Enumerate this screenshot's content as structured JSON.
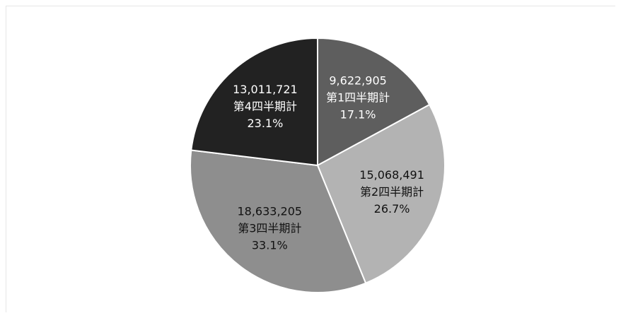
{
  "chart_data": {
    "type": "pie",
    "categories": [
      "第1四半期計",
      "第2四半期計",
      "第3四半期計",
      "第4四半期計"
    ],
    "values": [
      9622905,
      15068491,
      18633205,
      13011721
    ],
    "value_labels": [
      "9,622,905",
      "15,068,491",
      "18,633,205",
      "13,011,721"
    ],
    "percent_labels": [
      "17.1%",
      "26.7%",
      "33.1%",
      "23.1%"
    ],
    "colors": [
      "#5e5e5e",
      "#b3b3b3",
      "#8e8e8e",
      "#222222"
    ],
    "label_colors": [
      "#ffffff",
      "#111111",
      "#111111",
      "#ffffff"
    ],
    "start_angle": "12 o'clock",
    "direction": "clockwise",
    "legend": "none",
    "title": ""
  }
}
